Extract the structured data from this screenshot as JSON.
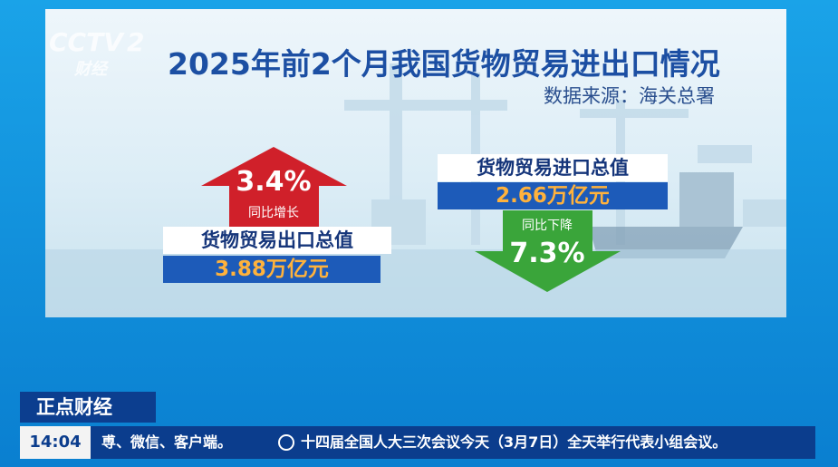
{
  "logo": {
    "channel": "CCTV",
    "number": "2",
    "name": "财经"
  },
  "title": "2025年前2个月我国货物贸易进出口情况",
  "source": "数据来源：海关总署",
  "export": {
    "change": "3.4%",
    "change_label": "同比增长",
    "label": "货物贸易出口总值",
    "value": "3.88万亿元"
  },
  "import": {
    "change": "7.3%",
    "change_label": "同比下降",
    "label": "货物贸易进口总值",
    "value": "2.66万亿元"
  },
  "program": "正点财经",
  "ticker": {
    "time": "14:04",
    "items": [
      "尃、微信、客户端。",
      "十四届全国人大三次会议今天（3月7日）全天举行代表小组会议。"
    ]
  }
}
